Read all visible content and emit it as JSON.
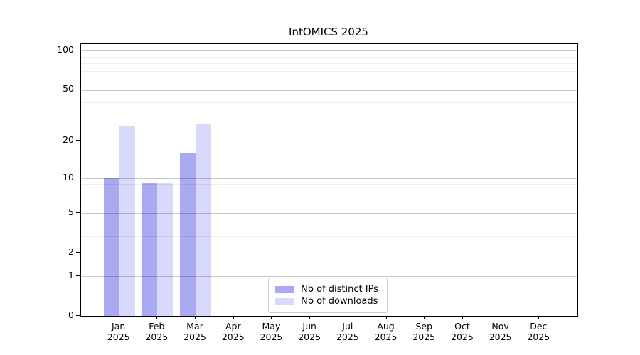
{
  "chart_data": {
    "type": "bar",
    "title": "IntOMICS 2025",
    "categories": [
      "Jan",
      "Feb",
      "Mar",
      "Apr",
      "May",
      "Jun",
      "Jul",
      "Aug",
      "Sep",
      "Oct",
      "Nov",
      "Dec"
    ],
    "category_year_label": "2025",
    "series": [
      {
        "name": "Nb of distinct IPs",
        "color": "#aaaaf2",
        "values": [
          10,
          9,
          16,
          0,
          0,
          0,
          0,
          0,
          0,
          0,
          0,
          0
        ]
      },
      {
        "name": "Nb of downloads",
        "color": "#d9d9fb",
        "values": [
          26,
          9,
          27,
          0,
          0,
          0,
          0,
          0,
          0,
          0,
          0,
          0
        ]
      }
    ],
    "y_scale": "log1p",
    "ylim": [
      0,
      112
    ],
    "y_major_ticks": [
      0,
      1,
      2,
      5,
      10,
      20,
      50,
      100
    ],
    "y_minor_ticks": [
      3,
      4,
      6,
      7,
      8,
      9,
      30,
      40,
      60,
      70,
      80,
      90
    ],
    "grid": true,
    "legend_position": "inside-bottom-center",
    "colors": {
      "axis": "#000000",
      "major_grid_rgba": "rgba(0,0,0,0.21)",
      "minor_grid_rgba": "rgba(0,0,0,0.07)",
      "background": "#ffffff"
    }
  }
}
